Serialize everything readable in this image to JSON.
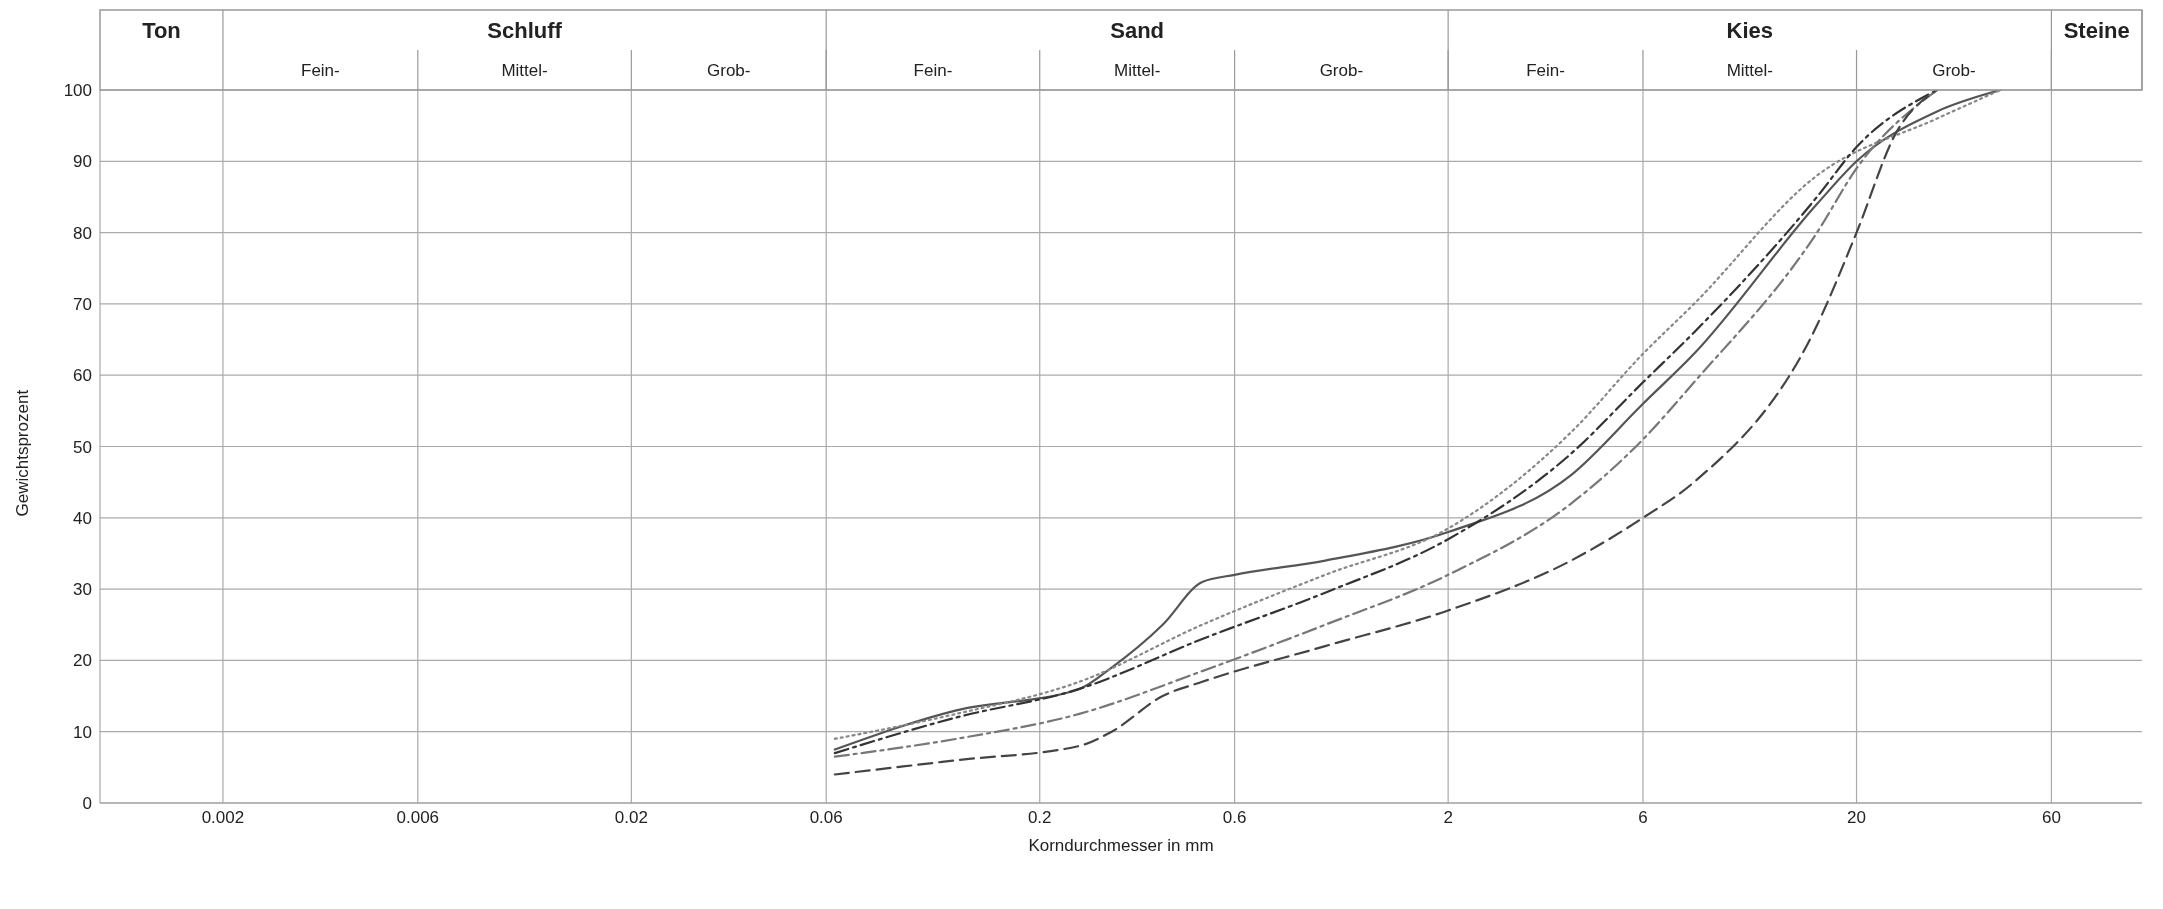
{
  "chart_data": {
    "type": "line",
    "xlabel": "Korndurchmesser in mm",
    "ylabel": "Gewichtsprozent",
    "log": "x",
    "xlim": [
      0.001,
      100
    ],
    "xticks": [
      0.002,
      0.006,
      0.02,
      0.06,
      0.2,
      0.6,
      2,
      6,
      20,
      60
    ],
    "ylim": [
      0,
      100
    ],
    "yticks": [
      0,
      10,
      20,
      30,
      40,
      50,
      60,
      70,
      80,
      90,
      100
    ],
    "grid": true,
    "legend": false,
    "marker": "none",
    "annotations": [
      "Ton",
      "Schluff",
      "Fein-",
      "Mittel-",
      "Grob-",
      "Sand",
      "Fein-",
      "Mittel-",
      "Grob-",
      "Kies",
      "Fein-",
      "Mittel-",
      "Grob-",
      "Steine"
    ],
    "series": [
      {
        "color": "#555555",
        "line_style": "solid",
        "x": [
          0.063,
          0.125,
          0.25,
          0.3,
          0.4,
          0.5,
          0.6,
          1,
          2,
          4,
          6,
          8,
          16,
          20,
          31.5,
          45
        ],
        "values": [
          7.5,
          13,
          16,
          19,
          25,
          31,
          32,
          34,
          38,
          46,
          56,
          63,
          84,
          90,
          97,
          100
        ]
      },
      {
        "color": "#888888",
        "line_style": "dotted",
        "x": [
          0.063,
          0.125,
          0.25,
          0.5,
          1,
          2,
          4,
          6,
          8,
          16,
          31.5,
          45
        ],
        "values": [
          9,
          12.5,
          17,
          25,
          32,
          38.5,
          52,
          63,
          70,
          88,
          96,
          100
        ]
      },
      {
        "color": "#333333",
        "line_style": "dashdot",
        "x": [
          0.063,
          0.125,
          0.25,
          0.5,
          1,
          2,
          4,
          6,
          8,
          16,
          20,
          31.5
        ],
        "values": [
          7,
          12,
          16,
          23,
          29.5,
          37,
          49,
          59,
          66,
          85,
          92,
          100
        ]
      },
      {
        "color": "#777777",
        "line_style": "dashdot",
        "x": [
          0.063,
          0.125,
          0.25,
          0.5,
          1,
          2,
          4,
          6,
          8,
          16,
          20,
          31.5
        ],
        "values": [
          6.5,
          9,
          12.5,
          18.5,
          25,
          32,
          42,
          51,
          59,
          80,
          89,
          100
        ]
      },
      {
        "color": "#444444",
        "line_style": "dashed",
        "x": [
          0.063,
          0.125,
          0.25,
          0.3,
          0.4,
          0.5,
          1,
          2,
          4,
          6,
          8,
          16,
          20,
          25,
          31.5
        ],
        "values": [
          4,
          6,
          8,
          10,
          15,
          17,
          22,
          27,
          34,
          40,
          45,
          67,
          80,
          94,
          100
        ]
      }
    ]
  }
}
